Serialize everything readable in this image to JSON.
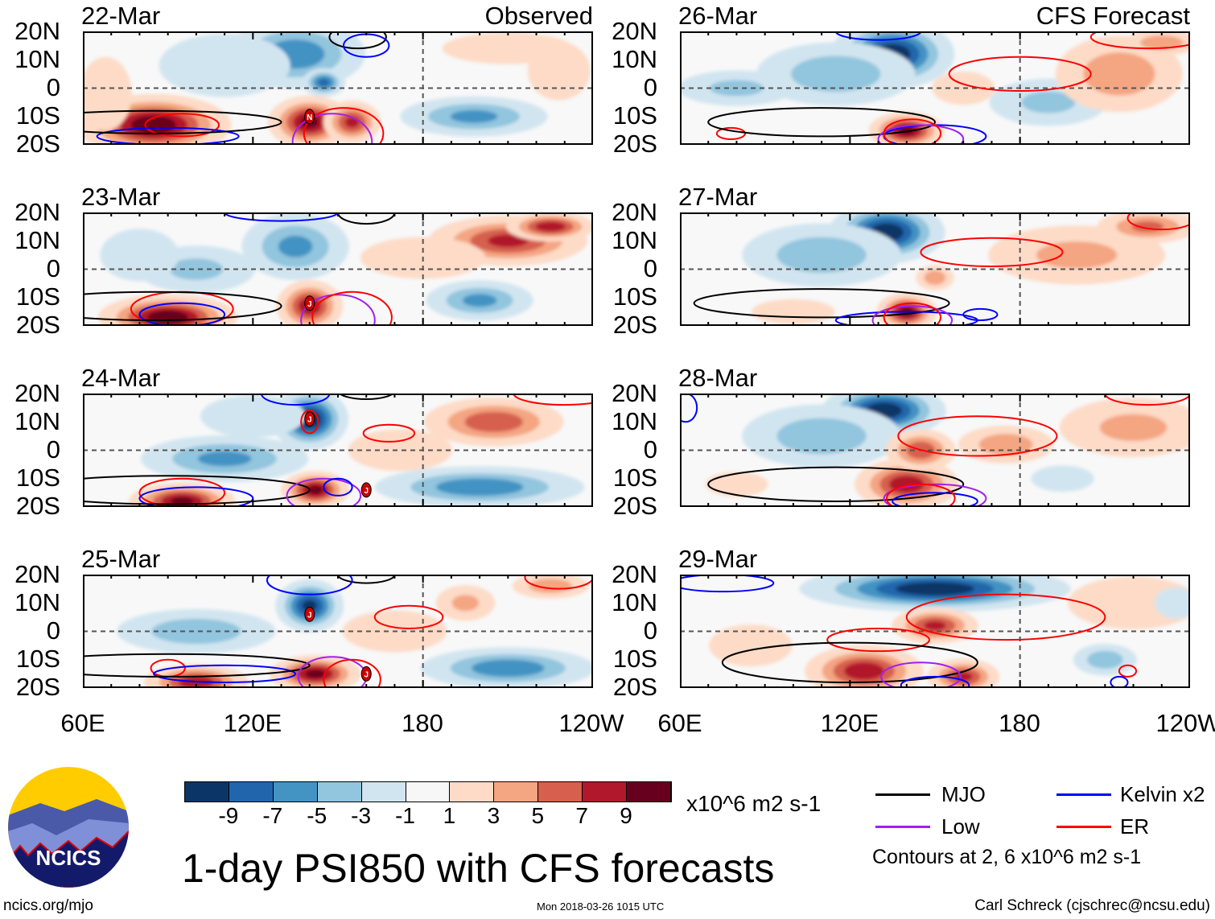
{
  "title": "1-day PSI850 with CFS forecasts",
  "observed_label": "Observed",
  "forecast_label": "CFS Forecast",
  "lat_labels": [
    "20N",
    "10N",
    "0",
    "10S",
    "20S"
  ],
  "lon_labels": [
    "60E",
    "120E",
    "180",
    "120W"
  ],
  "colorbar": {
    "unit": "x10^6 m2 s-1",
    "tick_labels": [
      "-9",
      "-7",
      "-5",
      "-3",
      "-1",
      "1",
      "3",
      "5",
      "7",
      "9"
    ],
    "colors": [
      "#0b3566",
      "#2166ac",
      "#4393c3",
      "#92c5de",
      "#d1e5f0",
      "#f7f7f7",
      "#fddbc7",
      "#f4a582",
      "#d6604d",
      "#b2182b",
      "#67001f"
    ]
  },
  "legend": {
    "items": [
      {
        "label": "MJO",
        "color": "#000000"
      },
      {
        "label": "Kelvin x2",
        "color": "#0000ff"
      },
      {
        "label": "Low",
        "color": "#a020f0"
      },
      {
        "label": "ER",
        "color": "#ff0000"
      }
    ],
    "note": "Contours at 2, 6 x10^6 m2 s-1"
  },
  "logo_text": "NCICS",
  "footer": {
    "url": "ncics.org/mjo",
    "timestamp": "Mon 2018-03-26 1015 UTC",
    "author": "Carl Schreck (cjschrec@ncsu.edu)"
  },
  "chart_data": {
    "type": "heatmap",
    "lon_range": [
      60,
      240
    ],
    "lat_range": [
      -20,
      20
    ],
    "panels": [
      {
        "date": "22-Mar",
        "kind": "observed",
        "blobs": [
          [
            85,
            -13,
            11,
            20,
            8
          ],
          [
            140,
            -12,
            10,
            11,
            7
          ],
          [
            155,
            -12,
            8,
            8,
            6
          ],
          [
            68,
            -2,
            3,
            10,
            14
          ],
          [
            135,
            12,
            -7,
            20,
            10
          ],
          [
            145,
            2,
            -8,
            6,
            4
          ],
          [
            110,
            8,
            -3,
            25,
            12
          ],
          [
            198,
            -10,
            -6,
            22,
            6
          ],
          [
            210,
            14,
            3,
            25,
            6
          ],
          [
            228,
            6,
            2,
            15,
            14
          ]
        ],
        "contours": [
          [
            "black",
            157,
            18,
            10,
            4
          ],
          [
            "blue",
            160,
            15,
            8,
            4
          ],
          [
            "red",
            95,
            -13,
            13,
            4
          ],
          [
            "blue",
            90,
            -17,
            25,
            3
          ],
          [
            "black",
            85,
            -12,
            45,
            4
          ],
          [
            "purple",
            148,
            -19,
            14,
            10
          ],
          [
            "red",
            152,
            -16,
            14,
            9
          ]
        ],
        "storms": [
          [
            140,
            -10,
            "N"
          ]
        ]
      },
      {
        "date": "23-Mar",
        "kind": "observed",
        "blobs": [
          [
            90,
            -17,
            11,
            18,
            6
          ],
          [
            140,
            -13,
            9,
            9,
            7
          ],
          [
            135,
            8,
            -6,
            16,
            10
          ],
          [
            100,
            0,
            -4,
            20,
            8
          ],
          [
            200,
            -11,
            -6,
            16,
            6
          ],
          [
            210,
            10,
            8,
            22,
            7
          ],
          [
            225,
            15,
            9,
            12,
            4
          ],
          [
            180,
            4,
            2,
            30,
            10
          ],
          [
            80,
            5,
            -3,
            15,
            10
          ]
        ],
        "contours": [
          [
            "black",
            160,
            20,
            10,
            4
          ],
          [
            "blue",
            130,
            20,
            20,
            3
          ],
          [
            "red",
            95,
            -14,
            18,
            6
          ],
          [
            "blue",
            95,
            -16,
            15,
            4
          ],
          [
            "black",
            85,
            -13,
            45,
            5
          ],
          [
            "purple",
            150,
            -18,
            13,
            9
          ],
          [
            "red",
            155,
            -17,
            14,
            9
          ]
        ],
        "storms": [
          [
            140,
            -12,
            "J"
          ]
        ]
      },
      {
        "date": "24-Mar",
        "kind": "observed",
        "blobs": [
          [
            140,
            11,
            -11,
            10,
            8
          ],
          [
            110,
            -3,
            -6,
            25,
            7
          ],
          [
            95,
            -18,
            10,
            14,
            5
          ],
          [
            142,
            -14,
            10,
            9,
            5
          ],
          [
            200,
            -13,
            -7,
            30,
            6
          ],
          [
            205,
            10,
            7,
            20,
            7
          ],
          [
            172,
            0,
            2,
            25,
            10
          ],
          [
            120,
            12,
            -3,
            20,
            8
          ]
        ],
        "contours": [
          [
            "black",
            160,
            21,
            10,
            3
          ],
          [
            "blue",
            135,
            20,
            12,
            4
          ],
          [
            "red",
            168,
            6,
            9,
            3
          ],
          [
            "red",
            140,
            10,
            3,
            4
          ],
          [
            "red",
            95,
            -15,
            15,
            5
          ],
          [
            "blue",
            100,
            -17,
            20,
            4
          ],
          [
            "black",
            90,
            -14,
            50,
            5
          ],
          [
            "purple",
            145,
            -16,
            13,
            6
          ],
          [
            "blue",
            150,
            -13,
            5,
            3
          ],
          [
            "red",
            230,
            20,
            18,
            4
          ]
        ],
        "storms": [
          [
            140,
            11,
            "J"
          ],
          [
            160,
            -14,
            "J"
          ]
        ]
      },
      {
        "date": "25-Mar",
        "kind": "observed",
        "blobs": [
          [
            140,
            9,
            -10,
            9,
            7
          ],
          [
            100,
            0,
            -5,
            25,
            7
          ],
          [
            100,
            -18,
            9,
            14,
            5
          ],
          [
            142,
            -15,
            10,
            12,
            5
          ],
          [
            210,
            -13,
            -7,
            25,
            6
          ],
          [
            195,
            10,
            4,
            10,
            6
          ],
          [
            225,
            16,
            5,
            12,
            4
          ],
          [
            170,
            0,
            2,
            25,
            10
          ]
        ],
        "contours": [
          [
            "black",
            160,
            20,
            10,
            3
          ],
          [
            "blue",
            140,
            18,
            15,
            5
          ],
          [
            "red",
            175,
            5,
            12,
            4
          ],
          [
            "red",
            90,
            -13,
            6,
            3
          ],
          [
            "blue",
            110,
            -15,
            25,
            3
          ],
          [
            "black",
            90,
            -12,
            50,
            4
          ],
          [
            "purple",
            148,
            -16,
            12,
            7
          ],
          [
            "red",
            155,
            -17,
            10,
            7
          ],
          [
            "red",
            228,
            19,
            12,
            4
          ]
        ],
        "storms": [
          [
            140,
            6,
            "J"
          ],
          [
            160,
            -15,
            "J"
          ]
        ]
      },
      {
        "date": "26-Mar",
        "kind": "forecast",
        "blobs": [
          [
            135,
            12,
            -11,
            16,
            9
          ],
          [
            115,
            5,
            -5,
            25,
            10
          ],
          [
            80,
            0,
            -4,
            20,
            6
          ],
          [
            140,
            -15,
            10,
            10,
            5
          ],
          [
            190,
            -5,
            -4,
            20,
            8
          ],
          [
            215,
            5,
            5,
            20,
            12
          ],
          [
            230,
            16,
            5,
            12,
            4
          ],
          [
            160,
            0,
            2,
            15,
            8
          ]
        ],
        "contours": [
          [
            "red",
            180,
            5,
            25,
            6
          ],
          [
            "red",
            78,
            -16,
            5,
            2
          ],
          [
            "black",
            110,
            -12,
            40,
            5
          ],
          [
            "blue",
            150,
            -17,
            18,
            4
          ],
          [
            "purple",
            145,
            -18,
            15,
            5
          ],
          [
            "red",
            142,
            -16,
            10,
            5
          ],
          [
            "blue",
            130,
            20,
            15,
            3
          ],
          [
            "red",
            225,
            18,
            20,
            4
          ]
        ],
        "storms": []
      },
      {
        "date": "27-Mar",
        "kind": "forecast",
        "blobs": [
          [
            133,
            13,
            -11,
            15,
            8
          ],
          [
            110,
            5,
            -5,
            25,
            10
          ],
          [
            140,
            -15,
            10,
            8,
            5
          ],
          [
            150,
            -3,
            5,
            6,
            4
          ],
          [
            200,
            5,
            4,
            30,
            10
          ],
          [
            225,
            15,
            6,
            15,
            5
          ],
          [
            100,
            -15,
            2,
            20,
            6
          ]
        ],
        "contours": [
          [
            "red",
            170,
            6,
            25,
            5
          ],
          [
            "black",
            110,
            -12,
            45,
            5
          ],
          [
            "blue",
            140,
            -18,
            25,
            3
          ],
          [
            "purple",
            142,
            -18,
            14,
            5
          ],
          [
            "red",
            142,
            -17,
            10,
            5
          ],
          [
            "blue",
            166,
            -16,
            6,
            2
          ],
          [
            "red",
            230,
            18,
            12,
            4
          ]
        ],
        "storms": []
      },
      {
        "date": "28-Mar",
        "kind": "forecast",
        "blobs": [
          [
            132,
            14,
            -11,
            16,
            7
          ],
          [
            110,
            5,
            -5,
            25,
            10
          ],
          [
            140,
            -12,
            9,
            14,
            7
          ],
          [
            145,
            0,
            7,
            10,
            6
          ],
          [
            175,
            2,
            5,
            15,
            6
          ],
          [
            220,
            8,
            4,
            25,
            10
          ],
          [
            80,
            -12,
            2,
            15,
            6
          ],
          [
            195,
            -10,
            -3,
            12,
            5
          ]
        ],
        "contours": [
          [
            "red",
            165,
            5,
            28,
            7
          ],
          [
            "red",
            225,
            20,
            15,
            4
          ],
          [
            "black",
            115,
            -12,
            45,
            6
          ],
          [
            "purple",
            150,
            -17,
            18,
            5
          ],
          [
            "blue",
            150,
            -18,
            15,
            3
          ],
          [
            "red",
            145,
            -17,
            12,
            5
          ],
          [
            "blue",
            62,
            15,
            4,
            5
          ]
        ],
        "storms": []
      },
      {
        "date": "29-Mar",
        "kind": "forecast",
        "blobs": [
          [
            150,
            15,
            -11,
            35,
            6
          ],
          [
            125,
            -14,
            9,
            16,
            7
          ],
          [
            150,
            2,
            8,
            12,
            5
          ],
          [
            160,
            -16,
            8,
            10,
            5
          ],
          [
            210,
            -10,
            -5,
            10,
            5
          ],
          [
            220,
            10,
            3,
            25,
            10
          ],
          [
            85,
            -5,
            2,
            20,
            10
          ],
          [
            235,
            10,
            -3,
            8,
            6
          ]
        ],
        "contours": [
          [
            "red",
            175,
            5,
            35,
            8
          ],
          [
            "red",
            130,
            -3,
            18,
            4
          ],
          [
            "black",
            120,
            -11,
            45,
            7
          ],
          [
            "purple",
            145,
            -16,
            14,
            5
          ],
          [
            "blue",
            150,
            -19,
            12,
            3
          ],
          [
            "blue",
            75,
            17,
            18,
            3
          ],
          [
            "red",
            218,
            -14,
            3,
            2
          ],
          [
            "blue",
            215,
            -18,
            3,
            2
          ]
        ],
        "storms": []
      }
    ]
  }
}
